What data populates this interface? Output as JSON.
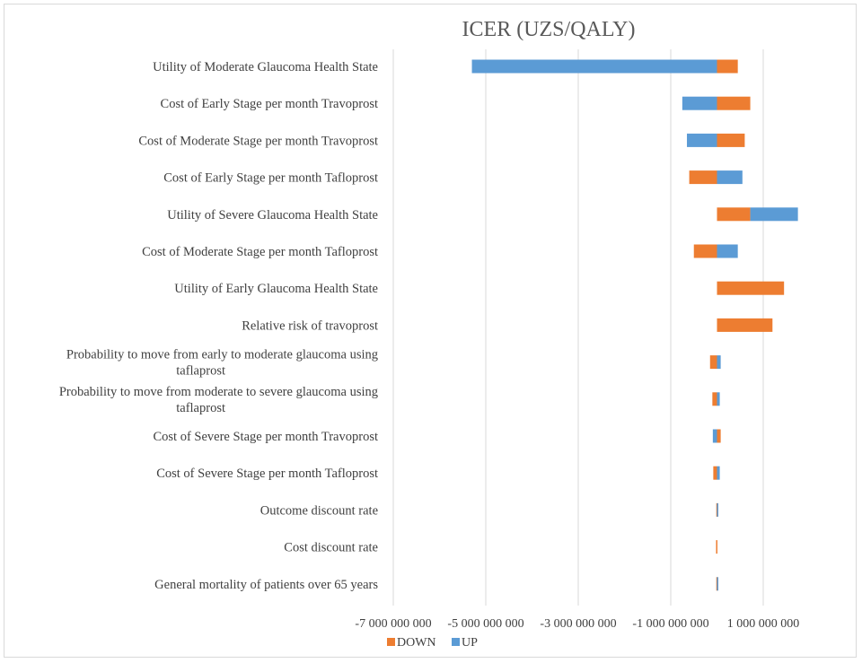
{
  "chart_data": {
    "type": "bar",
    "orientation": "horizontal",
    "title": "ICER (UZS/QALY)",
    "categories": [
      "Utility of Moderate Glaucoma Health State",
      "Cost of Early Stage per month Travoprost",
      "Cost of Moderate Stage per month Travoprost",
      "Cost of Early Stage per month Tafloprost",
      "Utility of Severe Glaucoma Health State",
      "Cost of Moderate Stage per month Tafloprost",
      "Utility of Early Glaucoma Health State",
      "Relative risk of travoprost",
      "Probability to move from early to moderate glaucoma using taflaprost",
      "Probability to move from moderate to severe glaucoma using taflaprost",
      "Cost of Severe Stage per month Travoprost",
      "Cost of Severe Stage per month Tafloprost",
      "Outcome discount rate",
      "Cost discount rate",
      "General mortality of patients over 65 years"
    ],
    "xlim": [
      -7000000000,
      1000000000
    ],
    "x_ticks": [
      -7000000000,
      -5000000000,
      -3000000000,
      -1000000000,
      1000000000
    ],
    "x_tick_labels": [
      "-7 000 000 000",
      "-5 000 000 000",
      "-3 000 000 000",
      "-1 000 000 000",
      "1 000 000 000"
    ],
    "grid": true,
    "series": [
      {
        "name": "DOWN",
        "color": "#ed7d31",
        "values": [
          [
            0,
            450000000
          ],
          [
            0,
            720000000
          ],
          [
            0,
            600000000
          ],
          [
            -600000000,
            0
          ],
          [
            0,
            720000000
          ],
          [
            -500000000,
            0
          ],
          [
            0,
            1450000000
          ],
          [
            0,
            1200000000
          ],
          [
            -150000000,
            0
          ],
          [
            -100000000,
            0
          ],
          [
            0,
            80000000
          ],
          [
            -80000000,
            0
          ],
          [
            -15000000,
            0
          ],
          [
            -20000000,
            0
          ],
          [
            -15000000,
            0
          ]
        ]
      },
      {
        "name": "UP",
        "color": "#5b9bd5",
        "values": [
          [
            -5300000000,
            0
          ],
          [
            -750000000,
            0
          ],
          [
            -650000000,
            0
          ],
          [
            0,
            550000000
          ],
          [
            720000000,
            1750000000
          ],
          [
            0,
            450000000
          ],
          [
            0,
            0
          ],
          [
            0,
            0
          ],
          [
            0,
            80000000
          ],
          [
            0,
            60000000
          ],
          [
            -90000000,
            0
          ],
          [
            0,
            60000000
          ],
          [
            0,
            15000000
          ],
          [
            0,
            0
          ],
          [
            0,
            10000000
          ]
        ]
      }
    ],
    "legend": {
      "position": "bottom-left",
      "entries": [
        "DOWN",
        "UP"
      ]
    }
  }
}
